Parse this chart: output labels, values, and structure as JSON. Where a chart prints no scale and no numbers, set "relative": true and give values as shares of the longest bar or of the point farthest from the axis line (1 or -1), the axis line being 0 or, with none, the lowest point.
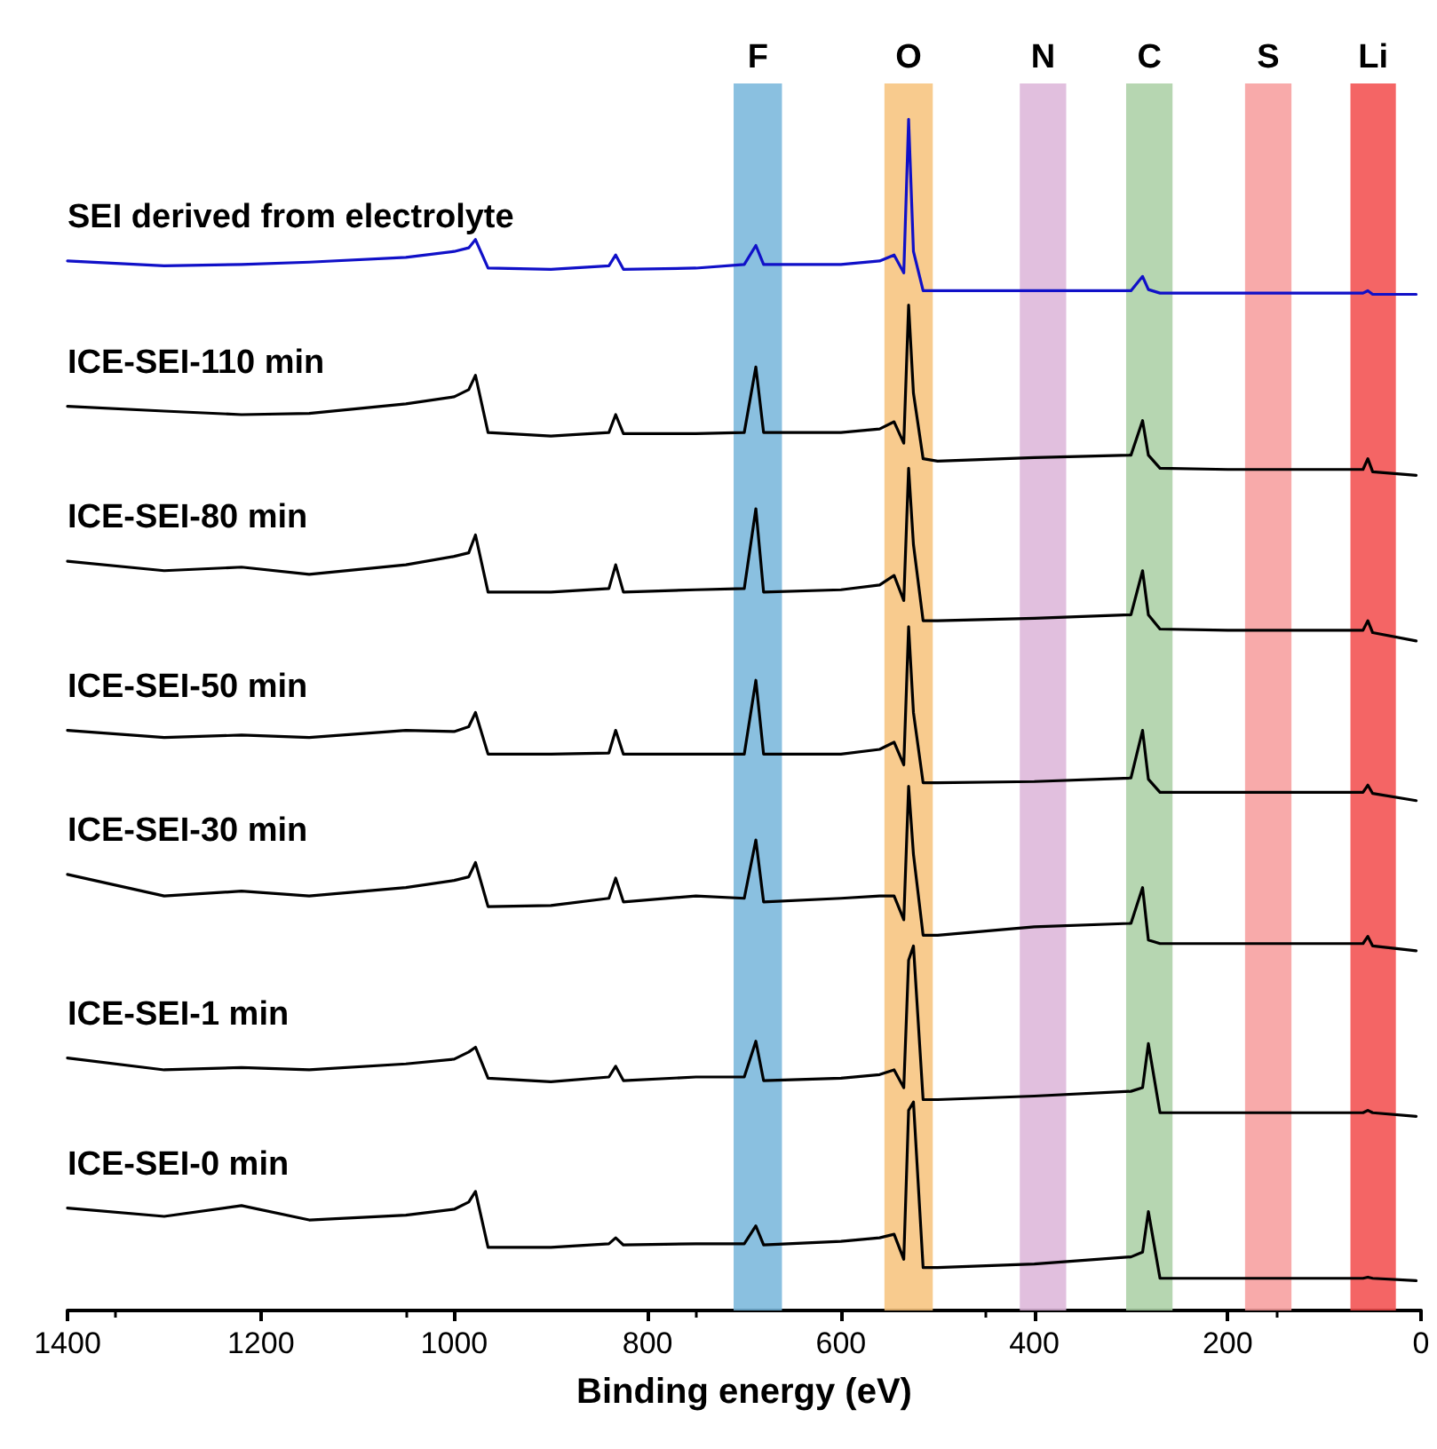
{
  "chart_data": {
    "type": "line",
    "relative": true,
    "xlabel": "Binding energy (eV)",
    "xlim": [
      1400,
      0
    ],
    "xticks": [
      1400,
      1200,
      1000,
      800,
      600,
      400,
      200,
      0
    ],
    "grid": false,
    "legend": false,
    "marker": "none",
    "line_style": "solid",
    "x": [
      1400,
      1300,
      1220,
      1150,
      1050,
      1000,
      985,
      978,
      965,
      900,
      840,
      833,
      825,
      750,
      700,
      688,
      680,
      600,
      560,
      545,
      535,
      530,
      525,
      515,
      500,
      400,
      300,
      288,
      282,
      270,
      200,
      60,
      55,
      50,
      5
    ],
    "series": [
      {
        "name": "SEI derived from electrolyte",
        "color": "#1010c8",
        "values": [
          0.881,
          0.877,
          0.878,
          0.88,
          0.884,
          0.889,
          0.892,
          0.899,
          0.875,
          0.874,
          0.877,
          0.886,
          0.874,
          0.875,
          0.878,
          0.894,
          0.878,
          0.878,
          0.881,
          0.886,
          0.871,
          1,
          0.889,
          0.856,
          0.856,
          0.856,
          0.856,
          0.868,
          0.857,
          0.854,
          0.854,
          0.854,
          0.856,
          0.853,
          0.853
        ]
      },
      {
        "name": "ICE-SEI-110 min",
        "color": "#000000",
        "values": [
          0.759,
          0.755,
          0.752,
          0.753,
          0.761,
          0.767,
          0.773,
          0.785,
          0.737,
          0.734,
          0.737,
          0.752,
          0.736,
          0.736,
          0.737,
          0.792,
          0.737,
          0.737,
          0.74,
          0.746,
          0.728,
          0.844,
          0.77,
          0.715,
          0.713,
          0.716,
          0.718,
          0.747,
          0.718,
          0.707,
          0.706,
          0.706,
          0.715,
          0.704,
          0.701
        ]
      },
      {
        "name": "ICE-SEI-80 min",
        "color": "#000000",
        "values": [
          0.629,
          0.621,
          0.624,
          0.618,
          0.626,
          0.633,
          0.636,
          0.651,
          0.603,
          0.603,
          0.606,
          0.626,
          0.603,
          0.605,
          0.606,
          0.673,
          0.603,
          0.605,
          0.609,
          0.617,
          0.596,
          0.707,
          0.643,
          0.579,
          0.579,
          0.581,
          0.584,
          0.621,
          0.584,
          0.572,
          0.571,
          0.571,
          0.579,
          0.569,
          0.562
        ]
      },
      {
        "name": "ICE-SEI-50 min",
        "color": "#000000",
        "values": [
          0.487,
          0.481,
          0.483,
          0.481,
          0.487,
          0.486,
          0.49,
          0.502,
          0.467,
          0.467,
          0.468,
          0.487,
          0.467,
          0.467,
          0.467,
          0.529,
          0.467,
          0.467,
          0.471,
          0.477,
          0.458,
          0.574,
          0.502,
          0.443,
          0.443,
          0.444,
          0.447,
          0.487,
          0.446,
          0.435,
          0.435,
          0.435,
          0.441,
          0.434,
          0.428
        ]
      },
      {
        "name": "ICE-SEI-30 min",
        "color": "#000000",
        "values": [
          0.366,
          0.348,
          0.352,
          0.348,
          0.355,
          0.361,
          0.364,
          0.376,
          0.339,
          0.34,
          0.346,
          0.363,
          0.343,
          0.348,
          0.346,
          0.395,
          0.343,
          0.346,
          0.348,
          0.348,
          0.328,
          0.44,
          0.383,
          0.315,
          0.315,
          0.322,
          0.325,
          0.355,
          0.311,
          0.308,
          0.308,
          0.308,
          0.314,
          0.306,
          0.302
        ]
      },
      {
        "name": "ICE-SEI-1 min",
        "color": "#000000",
        "values": [
          0.212,
          0.202,
          0.204,
          0.202,
          0.207,
          0.211,
          0.217,
          0.221,
          0.195,
          0.192,
          0.196,
          0.205,
          0.193,
          0.196,
          0.196,
          0.226,
          0.193,
          0.195,
          0.198,
          0.202,
          0.187,
          0.294,
          0.306,
          0.177,
          0.177,
          0.18,
          0.184,
          0.187,
          0.224,
          0.166,
          0.166,
          0.166,
          0.168,
          0.166,
          0.163
        ]
      },
      {
        "name": "ICE-SEI-0 min",
        "color": "#000000",
        "values": [
          0.086,
          0.079,
          0.088,
          0.076,
          0.08,
          0.085,
          0.091,
          0.1,
          0.053,
          0.053,
          0.056,
          0.061,
          0.055,
          0.056,
          0.056,
          0.071,
          0.055,
          0.058,
          0.061,
          0.064,
          0.043,
          0.168,
          0.175,
          0.036,
          0.036,
          0.039,
          0.045,
          0.049,
          0.083,
          0.027,
          0.027,
          0.027,
          0.028,
          0.027,
          0.025
        ]
      }
    ],
    "bands": [
      {
        "axis": "x",
        "from": 711,
        "to": 661,
        "label": "F",
        "color": "#76b5db"
      },
      {
        "axis": "x",
        "from": 555,
        "to": 505,
        "label": "O",
        "color": "#f7c27a"
      },
      {
        "axis": "x",
        "from": 415,
        "to": 367,
        "label": "N",
        "color": "#dcb4d8"
      },
      {
        "axis": "x",
        "from": 305,
        "to": 257,
        "label": "C",
        "color": "#a9cfa3"
      },
      {
        "axis": "x",
        "from": 182,
        "to": 134,
        "label": "S",
        "color": "#f79b9b"
      },
      {
        "axis": "x",
        "from": 73,
        "to": 26,
        "label": "Li",
        "color": "#f24a4a"
      }
    ]
  }
}
